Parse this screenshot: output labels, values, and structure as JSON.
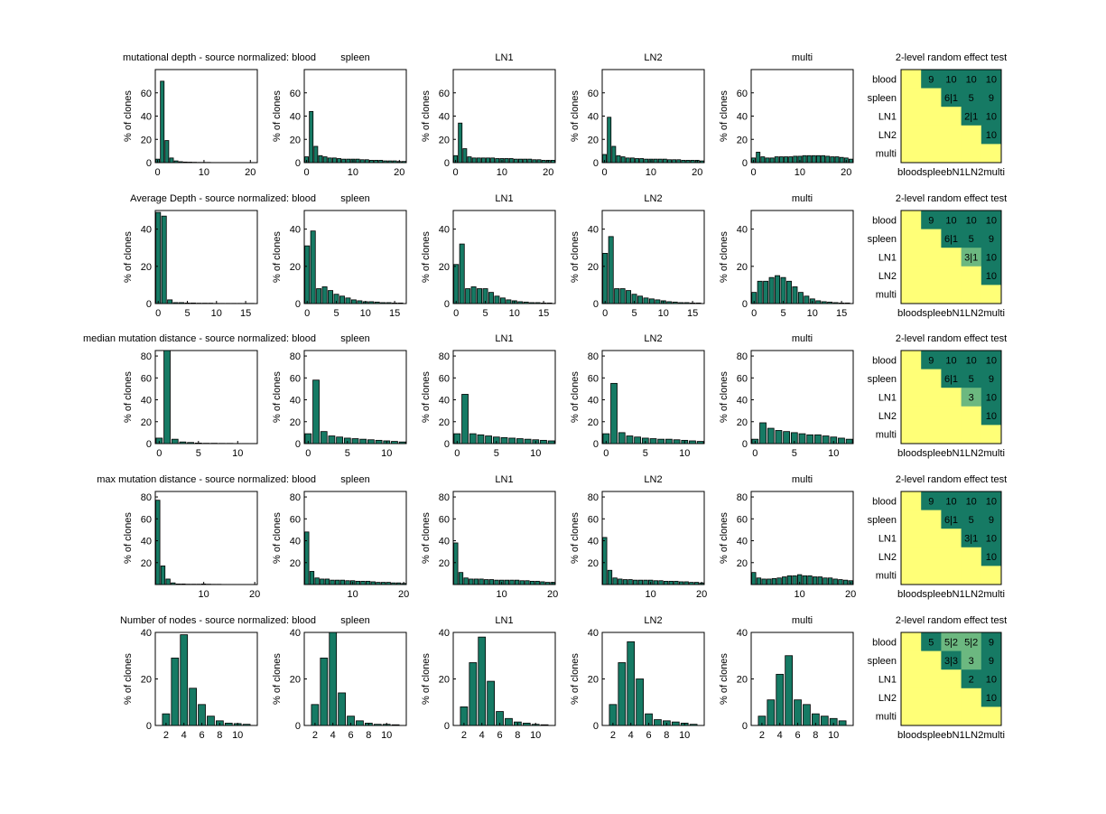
{
  "figure": {
    "ylabel": "% of clones",
    "heatmap_title": "2-level random effect test",
    "heatmap_labels": [
      "blood",
      "spleen",
      "LN1",
      "LN2",
      "multi"
    ],
    "heatmap_xlabel_text": "bloodspleebN1LN2multi"
  },
  "colors": {
    "bar": "#167a64",
    "sig": "#167a64",
    "mid": "#6cb880",
    "nonsig": "#ffff77"
  },
  "chart_data": [
    {
      "type": "bar",
      "row_title": "mutational depth - source normalized:",
      "panel_titles": [
        "blood",
        "spleen",
        "LN1",
        "LN2",
        "multi"
      ],
      "ylim": [
        0,
        80
      ],
      "yticks": [
        0,
        20,
        40,
        60
      ],
      "xlim": [
        -0.5,
        21.5
      ],
      "xticks": [
        0,
        10,
        20
      ],
      "x": [
        0,
        1,
        2,
        3,
        4,
        5,
        6,
        7,
        8,
        9,
        10,
        11,
        12,
        13,
        14,
        15,
        16,
        17,
        18,
        19,
        20,
        21
      ],
      "series": [
        {
          "name": "blood",
          "values": [
            3,
            70,
            19,
            4,
            1.5,
            0.8,
            0.5,
            0.4,
            0.3,
            0.2,
            0.2,
            0.2,
            0.1,
            0.1,
            0.1,
            0.1,
            0.1,
            0.1,
            0.1,
            0.1,
            0.1,
            0.1
          ]
        },
        {
          "name": "spleen",
          "values": [
            5,
            44,
            14,
            6,
            5,
            4,
            4,
            3.5,
            3,
            3,
            3,
            3,
            2.5,
            2.5,
            2,
            2,
            2,
            1.5,
            1.5,
            1.5,
            1,
            1
          ]
        },
        {
          "name": "LN1",
          "values": [
            6,
            34,
            12,
            5,
            4,
            4,
            4,
            4,
            4,
            3.5,
            3.5,
            3.5,
            3.5,
            3,
            3,
            3,
            3,
            2.5,
            2.5,
            2,
            2,
            2
          ]
        },
        {
          "name": "LN2",
          "values": [
            7,
            39,
            14,
            6,
            5,
            4,
            4,
            3.5,
            3.5,
            3,
            3,
            3,
            3,
            3,
            2.5,
            2.5,
            2.5,
            2,
            2,
            2,
            2,
            1.5
          ]
        },
        {
          "name": "multi",
          "values": [
            4,
            9,
            5,
            4,
            4,
            5,
            5,
            5,
            5,
            5.5,
            5.5,
            6,
            6,
            6,
            6,
            6,
            5.5,
            5,
            5,
            4.5,
            4,
            3
          ]
        }
      ],
      "heatmap": [
        [
          "",
          "9",
          "10",
          "10",
          "10"
        ],
        [
          "",
          "",
          "6|1",
          "5",
          "9"
        ],
        [
          "",
          "",
          "",
          "2|1",
          "10"
        ],
        [
          "",
          "",
          "",
          "",
          "10"
        ],
        [
          "",
          "",
          "",
          "",
          ""
        ]
      ],
      "heatmap_mid": []
    },
    {
      "type": "bar",
      "row_title": "Average Depth - source normalized:",
      "panel_titles": [
        "blood",
        "spleen",
        "LN1",
        "LN2",
        "multi"
      ],
      "ylim": [
        0,
        50
      ],
      "yticks": [
        0,
        20,
        40
      ],
      "xlim": [
        -0.5,
        17
      ],
      "xticks": [
        0,
        5,
        10,
        15
      ],
      "x": [
        0,
        1,
        2,
        3,
        4,
        5,
        6,
        7,
        8,
        9,
        10,
        11,
        12,
        13,
        14,
        15,
        16
      ],
      "series": [
        {
          "name": "blood",
          "values": [
            49,
            47,
            2,
            0.5,
            0.5,
            0.3,
            0.3,
            0.2,
            0.2,
            0.2,
            0.1,
            0.1,
            0.1,
            0.1,
            0.1,
            0.1,
            0.1
          ]
        },
        {
          "name": "spleen",
          "values": [
            31,
            39,
            8,
            9,
            7,
            5,
            4,
            3,
            2,
            1.5,
            1,
            1,
            0.8,
            0.5,
            0.5,
            0.3,
            0.3
          ]
        },
        {
          "name": "LN1",
          "values": [
            21,
            32,
            8,
            9,
            8,
            8,
            6,
            4,
            3,
            2,
            1.5,
            1,
            0.8,
            0.5,
            0.5,
            0.3,
            0.3
          ]
        },
        {
          "name": "LN2",
          "values": [
            27,
            36,
            8,
            8,
            7,
            5,
            4,
            3,
            2.5,
            2,
            1.5,
            1,
            0.8,
            0.5,
            0.5,
            0.3,
            0.3
          ]
        },
        {
          "name": "multi",
          "values": [
            6,
            12,
            12,
            14,
            15,
            14,
            12,
            9,
            6,
            4,
            2.5,
            1.5,
            1,
            0.8,
            0.5,
            0.3,
            0.3
          ]
        }
      ],
      "heatmap": [
        [
          "",
          "9",
          "10",
          "10",
          "10"
        ],
        [
          "",
          "",
          "6|1",
          "5",
          "9"
        ],
        [
          "",
          "",
          "",
          "3|1",
          "10"
        ],
        [
          "",
          "",
          "",
          "",
          "10"
        ],
        [
          "",
          "",
          "",
          "",
          ""
        ]
      ],
      "heatmap_mid": [
        [
          2,
          3
        ]
      ]
    },
    {
      "type": "bar",
      "row_title": "median mutation distance - source normalized:",
      "panel_titles": [
        "blood",
        "spleen",
        "LN1",
        "LN2",
        "multi"
      ],
      "ylim": [
        0,
        85
      ],
      "yticks": [
        0,
        20,
        40,
        60,
        80
      ],
      "xlim": [
        -0.5,
        12.5
      ],
      "xticks": [
        0,
        5,
        10
      ],
      "x": [
        0,
        1,
        2,
        3,
        4,
        5,
        6,
        7,
        8,
        9,
        10,
        11,
        12
      ],
      "series": [
        {
          "name": "blood",
          "values": [
            5,
            88,
            4,
            1.5,
            1,
            0.5,
            0.3,
            0.3,
            0.2,
            0.2,
            0.1,
            0.1,
            0.1
          ]
        },
        {
          "name": "spleen",
          "values": [
            9,
            58,
            11,
            7,
            6,
            5,
            4.5,
            4,
            3.5,
            3,
            2.5,
            2,
            1.5
          ]
        },
        {
          "name": "LN1",
          "values": [
            9,
            45,
            9,
            8,
            7,
            6,
            5.5,
            5,
            4.5,
            4,
            3.5,
            3,
            2.5
          ]
        },
        {
          "name": "LN2",
          "values": [
            9,
            55,
            10,
            7,
            6,
            5,
            4.5,
            4,
            4,
            3.5,
            3,
            2.5,
            2
          ]
        },
        {
          "name": "multi",
          "values": [
            4,
            19,
            14,
            12,
            11,
            10,
            9,
            8,
            8,
            7,
            6,
            5,
            4
          ]
        }
      ],
      "heatmap": [
        [
          "",
          "9",
          "10",
          "10",
          "10"
        ],
        [
          "",
          "",
          "6|1",
          "5",
          "9"
        ],
        [
          "",
          "",
          "",
          "3",
          "10"
        ],
        [
          "",
          "",
          "",
          "",
          "10"
        ],
        [
          "",
          "",
          "",
          "",
          ""
        ]
      ],
      "heatmap_mid": [
        [
          2,
          3
        ]
      ]
    },
    {
      "type": "bar",
      "row_title": "max mutation distance - source normalized:",
      "panel_titles": [
        "blood",
        "spleen",
        "LN1",
        "LN2",
        "multi"
      ],
      "ylim": [
        0,
        85
      ],
      "yticks": [
        20,
        40,
        60,
        80
      ],
      "xlim": [
        0.5,
        20.5
      ],
      "xticks": [
        10,
        20
      ],
      "x": [
        1,
        2,
        3,
        4,
        5,
        6,
        7,
        8,
        9,
        10,
        11,
        12,
        13,
        14,
        15,
        16,
        17,
        18,
        19,
        20
      ],
      "series": [
        {
          "name": "blood",
          "values": [
            77,
            17,
            5,
            1.5,
            0.5,
            0.5,
            0.3,
            0.3,
            0.3,
            0.5,
            0.3,
            0.2,
            0.2,
            0.1,
            0.1,
            0.1,
            0.1,
            0.1,
            0.1,
            0.1
          ]
        },
        {
          "name": "spleen",
          "values": [
            48,
            12,
            6,
            5,
            5,
            4,
            4,
            4,
            3.5,
            3.5,
            3,
            3,
            3,
            2.5,
            2,
            2,
            2,
            1.5,
            1.5,
            1
          ]
        },
        {
          "name": "LN1",
          "values": [
            38,
            11,
            6,
            5,
            5,
            5,
            4.5,
            4.5,
            4,
            4,
            4,
            4,
            4,
            3.5,
            3.5,
            3,
            3,
            2.5,
            2,
            2
          ]
        },
        {
          "name": "LN2",
          "values": [
            43,
            13,
            6,
            5,
            4.5,
            4.5,
            4,
            4,
            4,
            4,
            3.5,
            3.5,
            3,
            3,
            3,
            2.5,
            2.5,
            2,
            2,
            1.5
          ]
        },
        {
          "name": "multi",
          "values": [
            11,
            6,
            5,
            5,
            5.5,
            6,
            7,
            8,
            8,
            9,
            8,
            8,
            7,
            7,
            6,
            6,
            5,
            4.5,
            4,
            3.5
          ]
        }
      ],
      "heatmap": [
        [
          "",
          "9",
          "10",
          "10",
          "10"
        ],
        [
          "",
          "",
          "6|1",
          "5",
          "9"
        ],
        [
          "",
          "",
          "",
          "3|1",
          "10"
        ],
        [
          "",
          "",
          "",
          "",
          "10"
        ],
        [
          "",
          "",
          "",
          "",
          ""
        ]
      ],
      "heatmap_mid": []
    },
    {
      "type": "bar",
      "row_title": "Number of nodes - source normalized:",
      "panel_titles": [
        "blood",
        "spleen",
        "LN1",
        "LN2",
        "multi"
      ],
      "ylim": [
        0,
        40
      ],
      "yticks": [
        0,
        20,
        40
      ],
      "xlim": [
        0.8,
        12.2
      ],
      "xticks": [
        2,
        4,
        6,
        8,
        10
      ],
      "x": [
        2,
        3,
        4,
        5,
        6,
        7,
        8,
        9,
        10,
        11
      ],
      "series": [
        {
          "name": "blood",
          "values": [
            5,
            29,
            39,
            16,
            9,
            4,
            2,
            1,
            0.8,
            0.5
          ]
        },
        {
          "name": "spleen",
          "values": [
            9,
            29,
            41,
            14,
            4,
            2,
            1,
            0.5,
            0.5,
            0.3
          ]
        },
        {
          "name": "LN1",
          "values": [
            8,
            27,
            38,
            19,
            6,
            3,
            1.5,
            1,
            0.5,
            0.3
          ]
        },
        {
          "name": "LN2",
          "values": [
            9,
            27,
            36,
            20,
            5,
            2.5,
            2,
            1.5,
            1,
            0.5
          ]
        },
        {
          "name": "multi",
          "values": [
            4,
            11,
            22,
            30,
            11,
            9,
            5,
            4,
            3,
            2
          ]
        }
      ],
      "heatmap": [
        [
          "",
          "5",
          "5|2",
          "5|2",
          "9"
        ],
        [
          "",
          "",
          "3|3",
          "3",
          "9"
        ],
        [
          "",
          "",
          "",
          "2",
          "10"
        ],
        [
          "",
          "",
          "",
          "",
          "10"
        ],
        [
          "",
          "",
          "",
          "",
          ""
        ]
      ],
      "heatmap_mid": [
        [
          0,
          2
        ],
        [
          0,
          3
        ],
        [
          1,
          3
        ]
      ]
    }
  ]
}
